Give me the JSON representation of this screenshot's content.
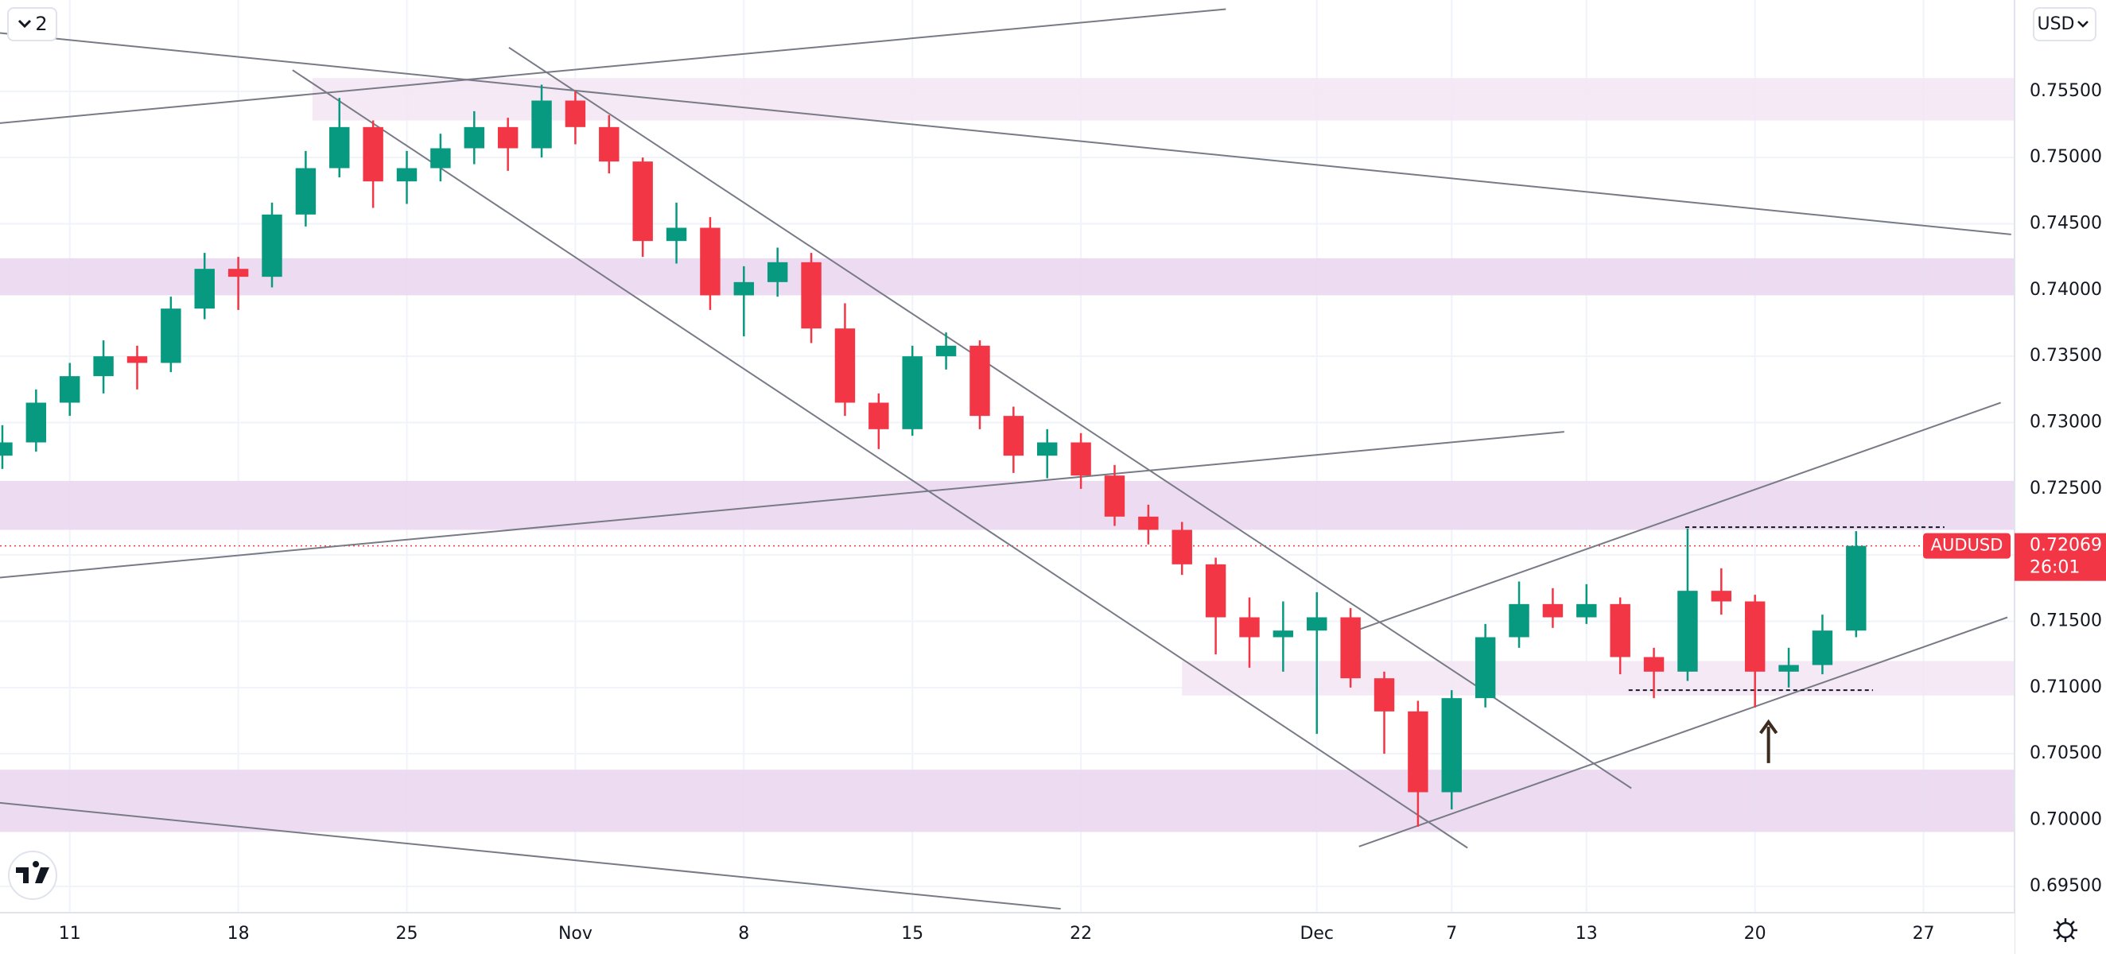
{
  "toolbar": {
    "layout_count": "2",
    "currency": "USD"
  },
  "chart_data": {
    "type": "candlestick",
    "series": [
      {
        "name": "AUDUSD",
        "up_color": "#089981",
        "down_color": "#f23645",
        "x": [
          -2,
          -1,
          0,
          1,
          2,
          3,
          4,
          5,
          6,
          7,
          8,
          9,
          10,
          11,
          12,
          13,
          14,
          15,
          16,
          17,
          18,
          19,
          20,
          21,
          22,
          23,
          24,
          25,
          26,
          27,
          28,
          29,
          30,
          31,
          32,
          33,
          34,
          35,
          36,
          37,
          38,
          39,
          40,
          41,
          42,
          43,
          44,
          45,
          46,
          47,
          48,
          49,
          50,
          51,
          52,
          53
        ],
        "open": [
          0.7275,
          0.7285,
          0.7315,
          0.7335,
          0.735,
          0.7345,
          0.7386,
          0.7416,
          0.741,
          0.7457,
          0.7492,
          0.7523,
          0.7482,
          0.7492,
          0.7507,
          0.7523,
          0.7507,
          0.7543,
          0.7523,
          0.7497,
          0.7437,
          0.7447,
          0.7396,
          0.7406,
          0.7421,
          0.7371,
          0.7315,
          0.7295,
          0.735,
          0.7358,
          0.7305,
          0.7275,
          0.7285,
          0.726,
          0.7229,
          0.7219,
          0.7193,
          0.7153,
          0.7138,
          0.7143,
          0.7153,
          0.7107,
          0.7082,
          0.7021,
          0.7092,
          0.7138,
          0.7163,
          0.7153,
          0.7163,
          0.7123,
          0.7112,
          0.7173,
          0.7165,
          0.7112,
          0.7117,
          0.7143
        ],
        "high": [
          0.7298,
          0.7325,
          0.7345,
          0.7362,
          0.7358,
          0.7395,
          0.7428,
          0.7425,
          0.7466,
          0.7505,
          0.7545,
          0.7528,
          0.7505,
          0.7518,
          0.7535,
          0.753,
          0.7555,
          0.755,
          0.7532,
          0.75,
          0.7466,
          0.7455,
          0.7418,
          0.7432,
          0.7428,
          0.739,
          0.7322,
          0.7358,
          0.7368,
          0.7362,
          0.7312,
          0.7295,
          0.7292,
          0.7268,
          0.7238,
          0.7225,
          0.7198,
          0.7168,
          0.7165,
          0.7172,
          0.716,
          0.7112,
          0.709,
          0.7098,
          0.7148,
          0.718,
          0.7175,
          0.7178,
          0.7168,
          0.713,
          0.722,
          0.719,
          0.717,
          0.713,
          0.7155,
          0.7218
        ],
        "low": [
          0.7265,
          0.7278,
          0.7305,
          0.7322,
          0.7325,
          0.7338,
          0.7378,
          0.7385,
          0.7402,
          0.7448,
          0.7485,
          0.7462,
          0.7465,
          0.7482,
          0.7495,
          0.749,
          0.75,
          0.751,
          0.7488,
          0.7425,
          0.742,
          0.7385,
          0.7365,
          0.7395,
          0.736,
          0.7305,
          0.728,
          0.729,
          0.734,
          0.7295,
          0.7262,
          0.7258,
          0.725,
          0.7222,
          0.7208,
          0.7185,
          0.7125,
          0.7115,
          0.7112,
          0.7065,
          0.71,
          0.705,
          0.6995,
          0.7008,
          0.7085,
          0.713,
          0.7145,
          0.7148,
          0.711,
          0.7092,
          0.7105,
          0.7155,
          0.7085,
          0.71,
          0.711,
          0.7138
        ],
        "close": [
          0.7285,
          0.7315,
          0.7335,
          0.735,
          0.7345,
          0.7386,
          0.7416,
          0.741,
          0.7457,
          0.7492,
          0.7523,
          0.7482,
          0.7492,
          0.7507,
          0.7523,
          0.7507,
          0.7543,
          0.7523,
          0.7497,
          0.7437,
          0.7447,
          0.7396,
          0.7406,
          0.7421,
          0.7371,
          0.7315,
          0.7295,
          0.735,
          0.7358,
          0.7305,
          0.7275,
          0.7285,
          0.726,
          0.7229,
          0.7219,
          0.7193,
          0.7153,
          0.7138,
          0.7143,
          0.7153,
          0.7107,
          0.7082,
          0.7021,
          0.7092,
          0.7138,
          0.7163,
          0.7153,
          0.7163,
          0.7123,
          0.7112,
          0.7173,
          0.7165,
          0.7112,
          0.7117,
          0.7143,
          0.72069
        ]
      }
    ],
    "last_price": 0.72069,
    "countdown": "26:01",
    "xlim": [
      -2.07,
      57.7
    ],
    "xticks": [
      {
        "value": 0,
        "label": "11"
      },
      {
        "value": 5,
        "label": "18"
      },
      {
        "value": 10,
        "label": "25"
      },
      {
        "value": 15,
        "label": "Nov"
      },
      {
        "value": 20,
        "label": "8"
      },
      {
        "value": 25,
        "label": "15"
      },
      {
        "value": 30,
        "label": "22"
      },
      {
        "value": 37,
        "label": "Dec"
      },
      {
        "value": 41,
        "label": "7"
      },
      {
        "value": 45,
        "label": "13"
      },
      {
        "value": 50,
        "label": "20"
      },
      {
        "value": 55,
        "label": "27"
      }
    ],
    "ylim": [
      0.69301,
      0.76189
    ],
    "yticks": [
      {
        "value": 0.695,
        "label": "0.69500"
      },
      {
        "value": 0.7,
        "label": "0.70000"
      },
      {
        "value": 0.705,
        "label": "0.70500"
      },
      {
        "value": 0.71,
        "label": "0.71000"
      },
      {
        "value": 0.715,
        "label": "0.71500"
      },
      {
        "value": 0.72,
        "label": "0.72000"
      },
      {
        "value": 0.725,
        "label": "0.72500"
      },
      {
        "value": 0.73,
        "label": "0.73000"
      },
      {
        "value": 0.735,
        "label": "0.73500"
      },
      {
        "value": 0.74,
        "label": "0.74000"
      },
      {
        "value": 0.745,
        "label": "0.74500"
      },
      {
        "value": 0.75,
        "label": "0.75000"
      },
      {
        "value": 0.755,
        "label": "0.75500"
      }
    ],
    "grid": true,
    "zones": [
      {
        "start": 7.2,
        "from": 0.7528,
        "to": 0.756,
        "color": "#f3e5f5"
      },
      {
        "start": -2.07,
        "from": 0.7396,
        "to": 0.7424,
        "color": "#ead6ee"
      },
      {
        "start": -2.07,
        "from": 0.7219,
        "to": 0.7256,
        "color": "#ead6ee"
      },
      {
        "start": 33,
        "from": 0.7094,
        "to": 0.712,
        "color": "#f3e5f5"
      },
      {
        "start": -2.07,
        "from": 0.6991,
        "to": 0.7038,
        "color": "#ead6ee"
      }
    ],
    "lines": [
      {
        "x": [
          -2.07,
          57.6
        ],
        "y": [
          0.7594,
          0.7442
        ]
      },
      {
        "x": [
          -2.07,
          34.3
        ],
        "y": [
          0.7526,
          0.7612
        ]
      },
      {
        "x": [
          6.61,
          41.47
        ],
        "y": [
          0.7566,
          0.6979
        ]
      },
      {
        "x": [
          13.03,
          46.33
        ],
        "y": [
          0.7583,
          0.7024
        ]
      },
      {
        "x": [
          -2.07,
          44.34
        ],
        "y": [
          0.7183,
          0.7293
        ]
      },
      {
        "x": [
          38.05,
          57.29
        ],
        "y": [
          0.7142,
          0.7315
        ]
      },
      {
        "x": [
          38.25,
          57.49
        ],
        "y": [
          0.698,
          0.7153
        ]
      },
      {
        "x": [
          -2.07,
          29.4
        ],
        "y": [
          0.7013,
          0.6933
        ]
      }
    ],
    "dashed_lines": [
      {
        "x": [
          47.93,
          55.62
        ],
        "y": [
          0.7221,
          0.7221
        ]
      },
      {
        "x": [
          46.25,
          53.5
        ],
        "y": [
          0.7098,
          0.7098
        ]
      }
    ],
    "arrow": {
      "x": 50.4,
      "from": 0.7043,
      "to": 0.7074
    }
  }
}
